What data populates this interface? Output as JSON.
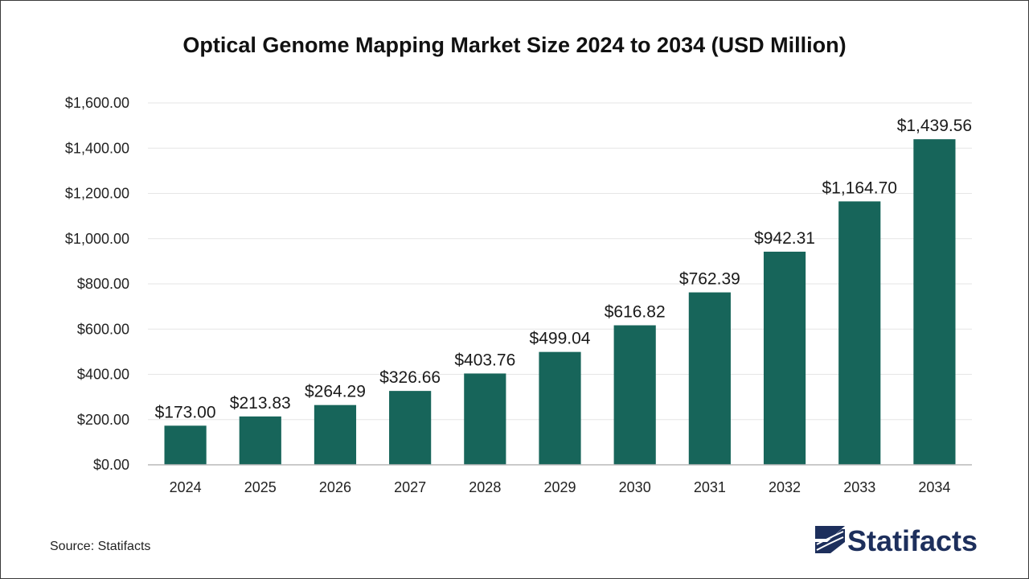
{
  "chart_data": {
    "type": "bar",
    "title": "Optical Genome Mapping Market Size 2024 to 2034 (USD Million)",
    "categories": [
      "2024",
      "2025",
      "2026",
      "2027",
      "2028",
      "2029",
      "2030",
      "2031",
      "2032",
      "2033",
      "2034"
    ],
    "values": [
      173.0,
      213.83,
      264.29,
      326.66,
      403.76,
      499.04,
      616.82,
      762.39,
      942.31,
      1164.7,
      1439.56
    ],
    "value_labels": [
      "$173.00",
      "$213.83",
      "$264.29",
      "$326.66",
      "$403.76",
      "$499.04",
      "$616.82",
      "$762.39",
      "$942.31",
      "$1,164.70",
      "$1,439.56"
    ],
    "y_ticks": [
      0,
      200,
      400,
      600,
      800,
      1000,
      1200,
      1400,
      1600
    ],
    "y_tick_labels": [
      "$0.00",
      "$200.00",
      "$400.00",
      "$600.00",
      "$800.00",
      "$1,000.00",
      "$1,200.00",
      "$1,400.00",
      "$1,600.00"
    ],
    "ylim": [
      0,
      1600
    ],
    "xlabel": "",
    "ylabel": "",
    "grid": true,
    "legend": "none"
  },
  "colors": {
    "bar": "#17655a",
    "grid": "#e6e6e6",
    "axis": "#b8b8b8",
    "brand": "#1d2f5c"
  },
  "footer": {
    "source": "Source: Statifacts",
    "brand_name": "Statifacts",
    "brand_icon": "statifacts-logo-icon"
  }
}
